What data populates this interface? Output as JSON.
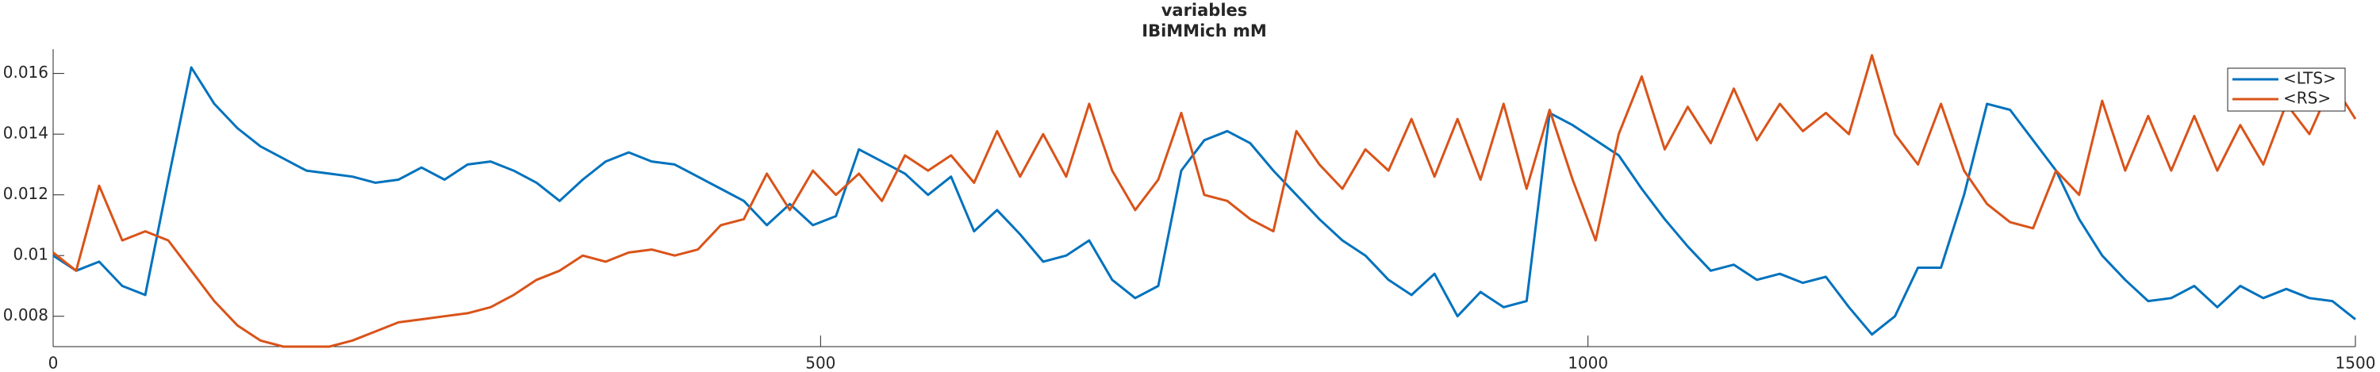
{
  "chart_data": {
    "type": "line",
    "title": "variables",
    "subtitle": "IBiMMich mM",
    "x": [
      0,
      15,
      30,
      45,
      60,
      75,
      90,
      105,
      120,
      135,
      150,
      165,
      180,
      195,
      210,
      225,
      240,
      255,
      270,
      285,
      300,
      315,
      330,
      345,
      360,
      375,
      390,
      405,
      420,
      435,
      450,
      465,
      480,
      495,
      510,
      525,
      540,
      555,
      570,
      585,
      600,
      615,
      630,
      645,
      660,
      675,
      690,
      705,
      720,
      735,
      750,
      765,
      780,
      795,
      810,
      825,
      840,
      855,
      870,
      885,
      900,
      915,
      930,
      945,
      960,
      975,
      990,
      1005,
      1020,
      1035,
      1050,
      1065,
      1080,
      1095,
      1110,
      1125,
      1140,
      1155,
      1170,
      1185,
      1200,
      1215,
      1230,
      1245,
      1260,
      1275,
      1290,
      1305,
      1320,
      1335,
      1350,
      1365,
      1380,
      1395,
      1410,
      1425,
      1440,
      1455,
      1470,
      1485,
      1500
    ],
    "series": [
      {
        "name": "<LTS>",
        "color": "#0072bd",
        "values": [
          0.01,
          0.0095,
          0.0098,
          0.009,
          0.0087,
          0.0125,
          0.0162,
          0.015,
          0.0142,
          0.0136,
          0.0132,
          0.0128,
          0.0127,
          0.0126,
          0.0124,
          0.0125,
          0.0129,
          0.0125,
          0.013,
          0.0131,
          0.0128,
          0.0124,
          0.0118,
          0.0125,
          0.0131,
          0.0134,
          0.0131,
          0.013,
          0.0126,
          0.0122,
          0.0118,
          0.011,
          0.0117,
          0.011,
          0.0113,
          0.0135,
          0.0131,
          0.0127,
          0.012,
          0.0126,
          0.0108,
          0.0115,
          0.0107,
          0.0098,
          0.01,
          0.0105,
          0.0092,
          0.0086,
          0.009,
          0.0128,
          0.0138,
          0.0141,
          0.0137,
          0.0128,
          0.012,
          0.0112,
          0.0105,
          0.01,
          0.0092,
          0.0087,
          0.0094,
          0.008,
          0.0088,
          0.0083,
          0.0085,
          0.0147,
          0.0143,
          0.0138,
          0.0133,
          0.0122,
          0.0112,
          0.0103,
          0.0095,
          0.0097,
          0.0092,
          0.0094,
          0.0091,
          0.0093,
          0.0083,
          0.0074,
          0.008,
          0.0096,
          0.0096,
          0.012,
          0.015,
          0.0148,
          0.0138,
          0.0128,
          0.0112,
          0.01,
          0.0092,
          0.0085,
          0.0086,
          0.009,
          0.0083,
          0.009,
          0.0086,
          0.0089,
          0.0086,
          0.0085,
          0.0079
        ]
      },
      {
        "name": "<RS>",
        "color": "#d95319",
        "values": [
          0.0101,
          0.0095,
          0.0123,
          0.0105,
          0.0108,
          0.0105,
          0.0095,
          0.0085,
          0.0077,
          0.0072,
          0.007,
          0.007,
          0.007,
          0.0072,
          0.0075,
          0.0078,
          0.0079,
          0.008,
          0.0081,
          0.0083,
          0.0087,
          0.0092,
          0.0095,
          0.01,
          0.0098,
          0.0101,
          0.0102,
          0.01,
          0.0102,
          0.011,
          0.0112,
          0.0127,
          0.0115,
          0.0128,
          0.012,
          0.0127,
          0.0118,
          0.0133,
          0.0128,
          0.0133,
          0.0124,
          0.0141,
          0.0126,
          0.014,
          0.0126,
          0.015,
          0.0128,
          0.0115,
          0.0125,
          0.0147,
          0.012,
          0.0118,
          0.0112,
          0.0108,
          0.0141,
          0.013,
          0.0122,
          0.0135,
          0.0128,
          0.0145,
          0.0126,
          0.0145,
          0.0125,
          0.015,
          0.0122,
          0.0148,
          0.0125,
          0.0105,
          0.014,
          0.0159,
          0.0135,
          0.0149,
          0.0137,
          0.0155,
          0.0138,
          0.015,
          0.0141,
          0.0147,
          0.014,
          0.0166,
          0.014,
          0.013,
          0.015,
          0.0128,
          0.0117,
          0.0111,
          0.0109,
          0.0128,
          0.012,
          0.0151,
          0.0128,
          0.0146,
          0.0128,
          0.0146,
          0.0128,
          0.0143,
          0.013,
          0.015,
          0.014,
          0.0157,
          0.0145
        ]
      }
    ],
    "xlim": [
      0,
      1500
    ],
    "xticks": [
      0,
      500,
      1000,
      1500
    ],
    "ylim": [
      0.007,
      0.0168
    ],
    "yticks": [
      0.008,
      0.01,
      0.012,
      0.014,
      0.016
    ],
    "legend": "top-right"
  }
}
